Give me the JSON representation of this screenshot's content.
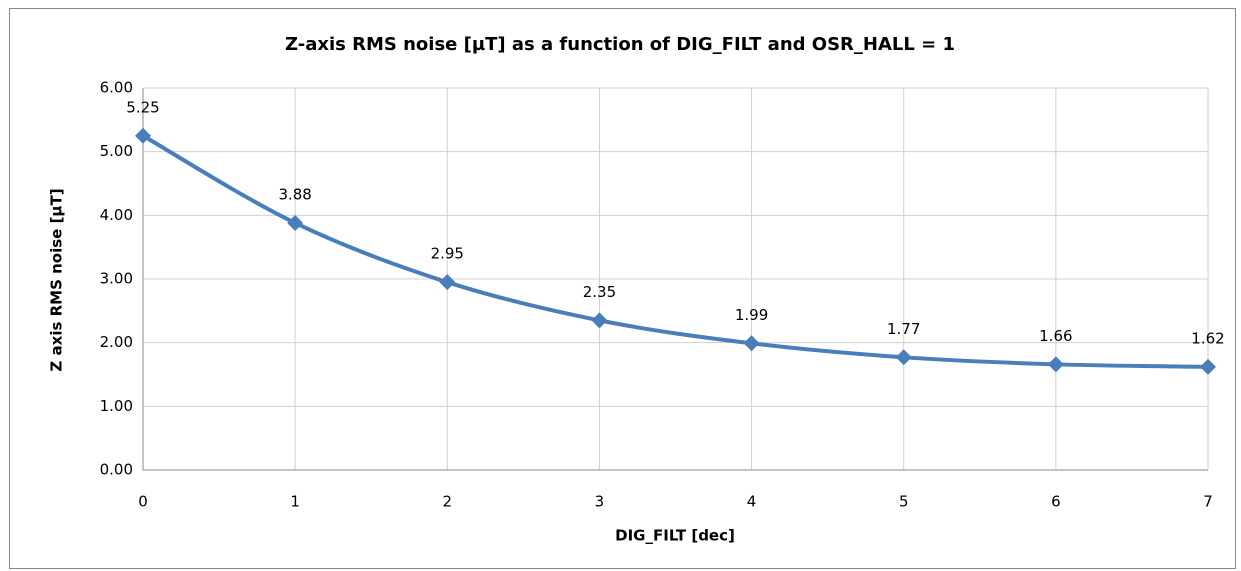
{
  "chart_data": {
    "type": "line",
    "title": "Z-axis RMS noise [µT] as a function of DIG_FILT and OSR_HALL = 1",
    "xlabel": "DIG_FILT  [dec]",
    "ylabel": "Z axis RMS noise [µT]",
    "x": [
      0,
      1,
      2,
      3,
      4,
      5,
      6,
      7
    ],
    "series": [
      {
        "name": "Z-axis RMS noise",
        "color": "#4a7ebb",
        "values": [
          5.25,
          3.88,
          2.95,
          2.35,
          1.99,
          1.77,
          1.66,
          1.62
        ]
      }
    ],
    "xlim": [
      0,
      7
    ],
    "xticks": [
      0,
      1,
      2,
      3,
      4,
      5,
      6,
      7
    ],
    "ylim": [
      0,
      6
    ],
    "yticks": [
      {
        "value": 0,
        "label": "0.00"
      },
      {
        "value": 1,
        "label": "1.00"
      },
      {
        "value": 2,
        "label": "2.00"
      },
      {
        "value": 3,
        "label": "3.00"
      },
      {
        "value": 4,
        "label": "4.00"
      },
      {
        "value": 5,
        "label": "5.00"
      },
      {
        "value": 6,
        "label": "6.00"
      }
    ],
    "grid": true
  }
}
